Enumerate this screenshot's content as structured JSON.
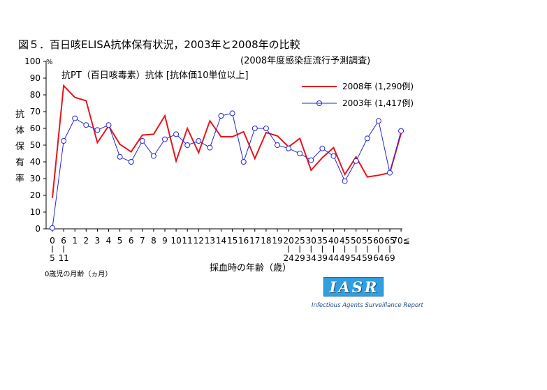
{
  "chart_data": {
    "type": "line",
    "title": "図５．百日咳ELISA抗体保有状況，2003年と2008年の比較",
    "subtitle": "(2008年度感染症流行予測調査)",
    "inner_title": "抗PT（百日咳毒素）抗体 [抗体価10単位以上]",
    "y_unit": "%",
    "ylabel": "抗体保有率",
    "ylabel_chars": [
      "抗",
      "体",
      "保",
      "有",
      "率"
    ],
    "xlabel": "採血時の年齢（歳）",
    "xlabel_months": "0歳児の月齢（ヵ月）",
    "ylim": [
      0,
      100
    ],
    "yticks": [
      "0",
      "10",
      "20",
      "30",
      "40",
      "50",
      "60",
      "70",
      "80",
      "90",
      "100"
    ],
    "categories": [
      "0-5",
      "6-11",
      "1",
      "2",
      "3",
      "4",
      "5",
      "6",
      "7",
      "8",
      "9",
      "10",
      "11",
      "12",
      "13",
      "14",
      "15",
      "16",
      "17",
      "18",
      "19",
      "20-24",
      "25-29",
      "30-34",
      "35-39",
      "40-44",
      "45-49",
      "50-54",
      "55-59",
      "60-64",
      "65-69",
      "70≦"
    ],
    "tick_top": [
      "0",
      "6",
      "1",
      "2",
      "3",
      "4",
      "5",
      "6",
      "7",
      "8",
      "9",
      "10",
      "11",
      "12",
      "13",
      "14",
      "15",
      "16",
      "17",
      "18",
      "19",
      "20",
      "25",
      "30",
      "35",
      "40",
      "45",
      "50",
      "55",
      "60",
      "65",
      "70≦"
    ],
    "tick_bottom": [
      "5",
      "11",
      "",
      "",
      "",
      "",
      "",
      "",
      "",
      "",
      "",
      "",
      "",
      "",
      "",
      "",
      "",
      "",
      "",
      "",
      "",
      "24",
      "29",
      "34",
      "39",
      "44",
      "49",
      "54",
      "59",
      "64",
      "69",
      ""
    ],
    "series": [
      {
        "name": "2008年 (1,290例)",
        "color": "#e8141c",
        "marker": "none",
        "values": [
          18.5,
          85.5,
          78.5,
          76.5,
          51.5,
          61.5,
          50.5,
          46,
          56,
          56.5,
          67.5,
          40.5,
          60,
          45.5,
          64.5,
          55,
          55,
          58,
          42,
          57.5,
          55.5,
          49,
          54,
          35,
          42.5,
          48.5,
          32.5,
          43,
          31,
          32,
          33.5,
          57
        ]
      },
      {
        "name": "2003年 (1,417例)",
        "color": "#2424d8",
        "marker": "circle",
        "values": [
          0.5,
          52.5,
          66,
          62,
          59,
          62,
          43,
          40,
          52.5,
          43.5,
          53.5,
          56.5,
          50,
          52.5,
          48.5,
          67.5,
          69,
          40,
          60,
          60,
          50,
          48,
          45,
          41,
          48,
          43.5,
          28.5,
          40.5,
          54,
          64.5,
          33.5,
          58.5
        ]
      }
    ],
    "legend_position": "top-right"
  },
  "logo": {
    "text": "IASR",
    "caption": "Infectious Agents Surveillance Report"
  }
}
